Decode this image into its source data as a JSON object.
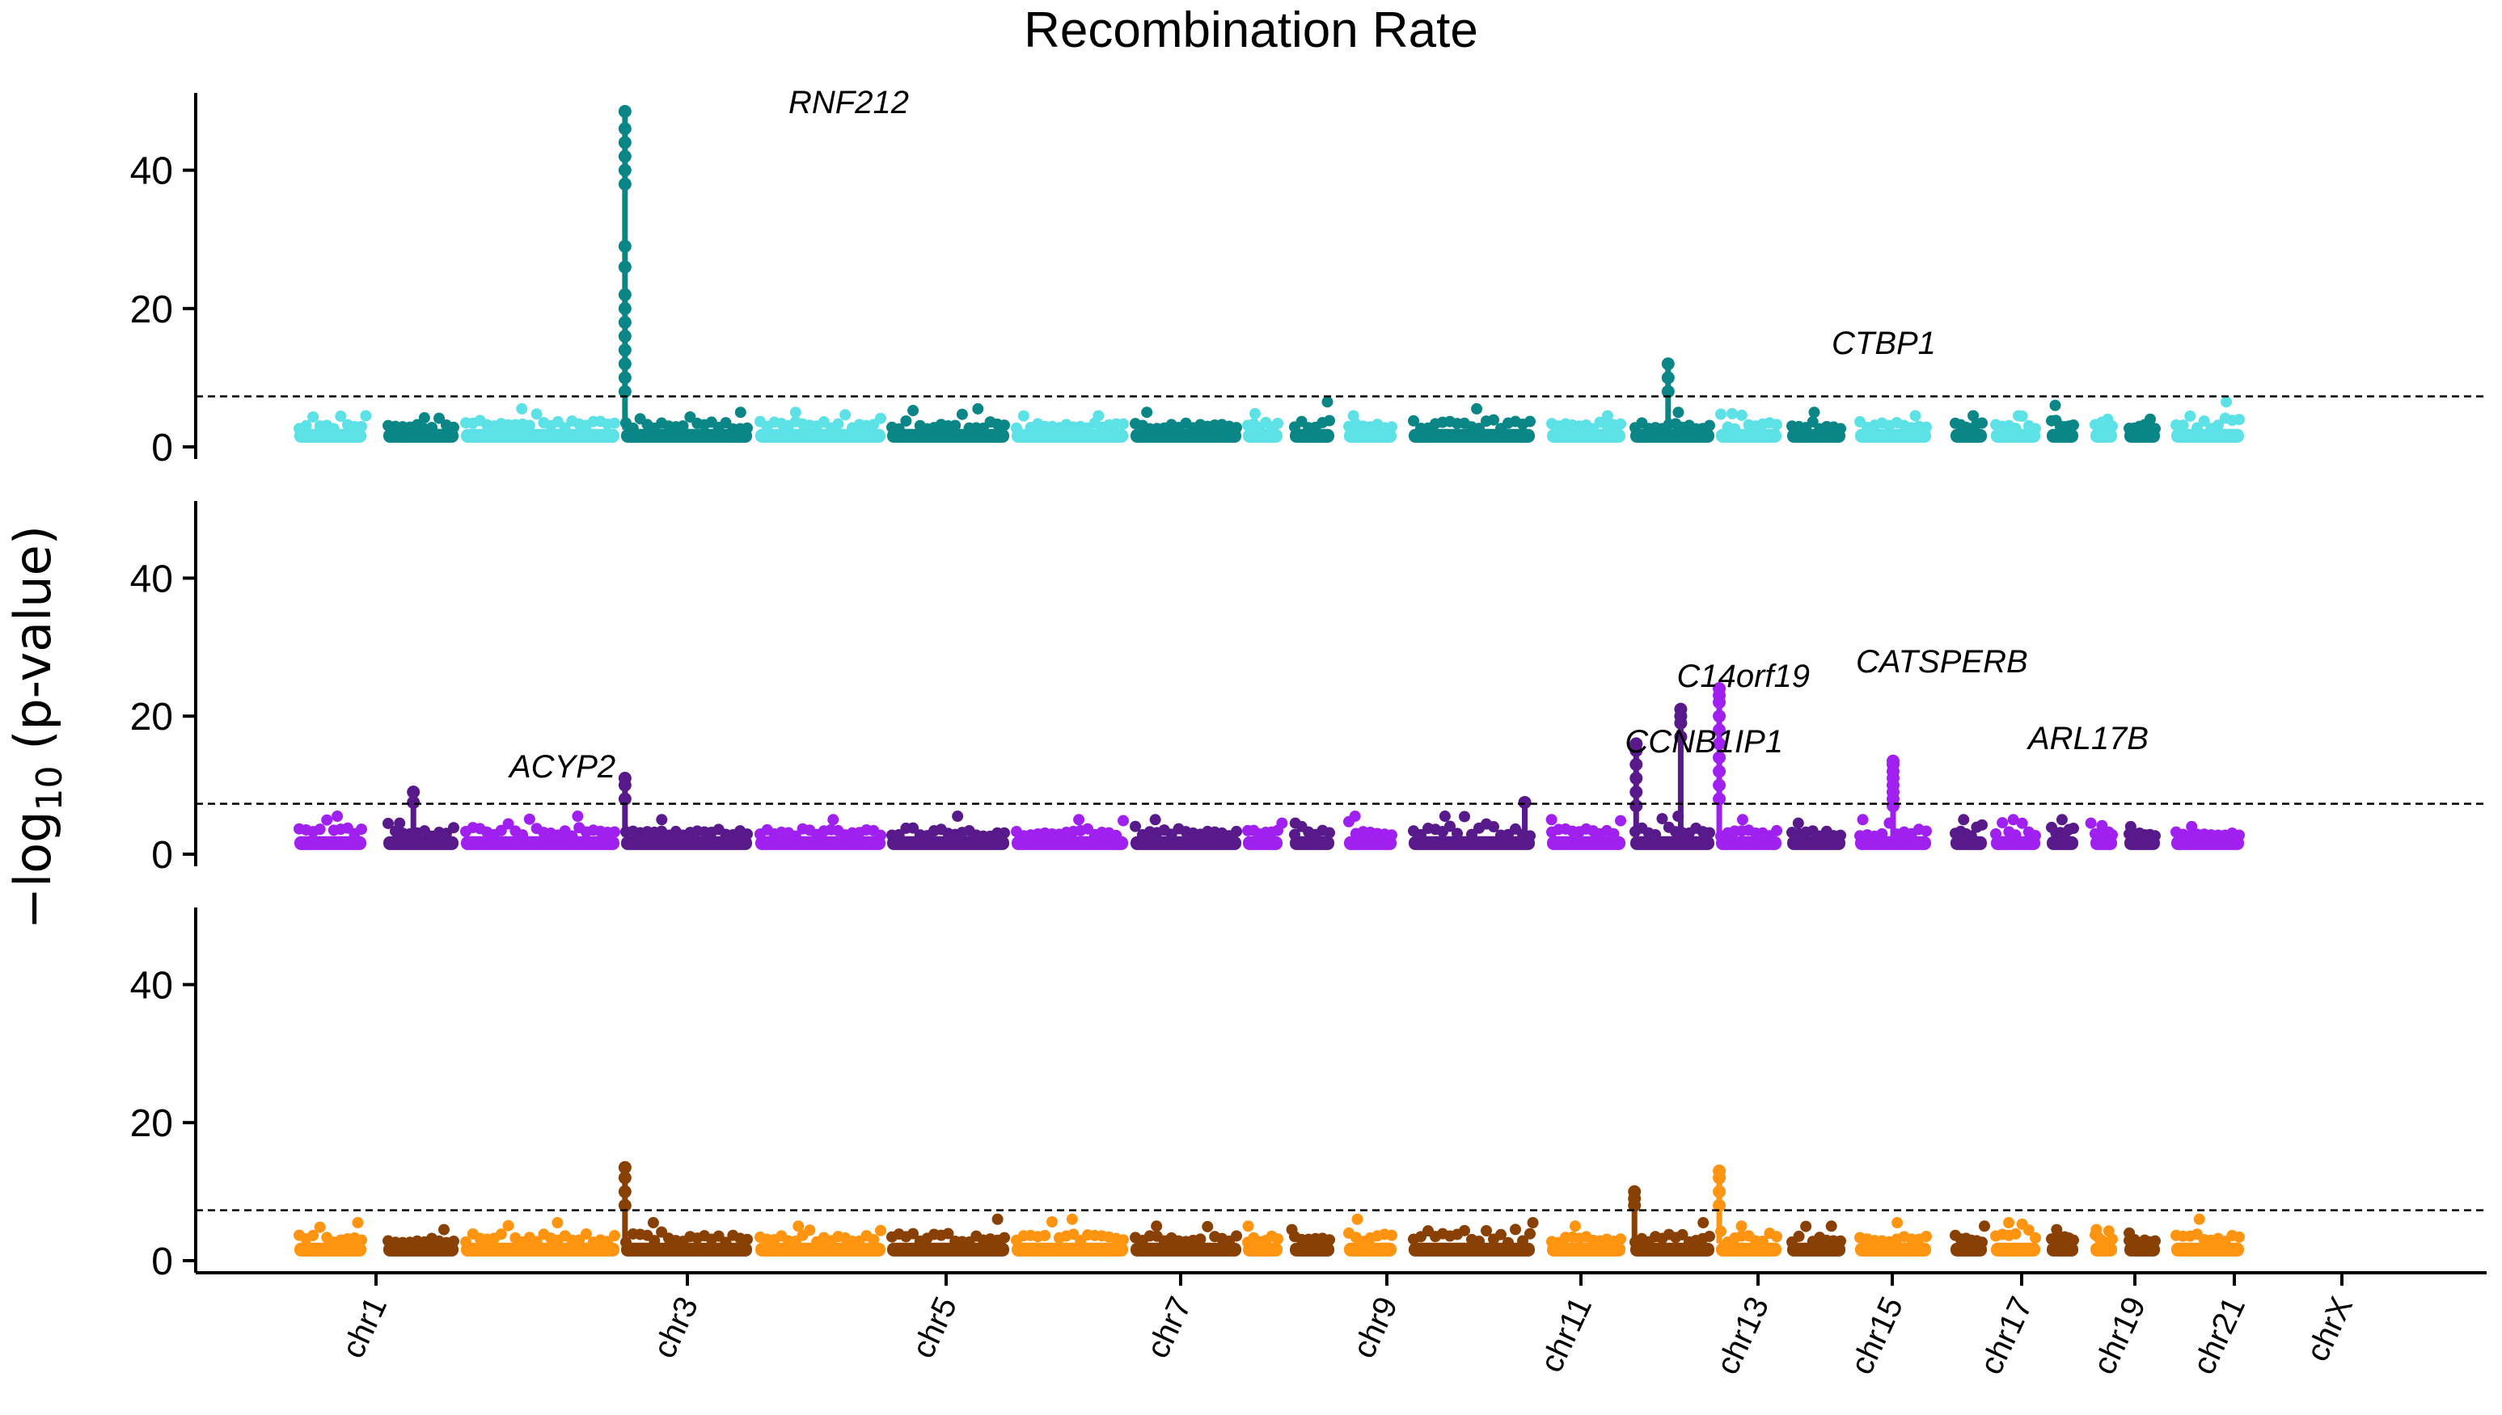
{
  "chart_data": {
    "type": "scatter",
    "subtype": "manhattan",
    "title": "Recombination Rate",
    "ylabel": "−log10 (p-value)",
    "ylabel_parts": {
      "prefix": "−log",
      "subscript": "10",
      "suffix": " (p-value)"
    },
    "ylim": [
      0,
      50
    ],
    "yticks": [
      0,
      20,
      40
    ],
    "x_tick_labels": [
      "chr1",
      "chr3",
      "chr5",
      "chr7",
      "chr9",
      "chr11",
      "chr13",
      "chr15",
      "chr17",
      "chr19",
      "chr21",
      "chrX"
    ],
    "genomewide_threshold": 7.3,
    "chromosomes": [
      "chr1",
      "chr2",
      "chr3",
      "chr4",
      "chr5",
      "chr6",
      "chr7",
      "chr8",
      "chr9",
      "chr10",
      "chr11",
      "chr12",
      "chr13",
      "chr14",
      "chr15",
      "chr16",
      "chr17",
      "chr18",
      "chr19",
      "chr20",
      "chr21",
      "chr22",
      "chrX"
    ],
    "panels": [
      {
        "name": "panel-1",
        "colors": {
          "light": "#5ce1e6",
          "dark": "#0a8686"
        },
        "baseline_max": [
          4.5,
          4.2,
          5.5,
          5.0,
          5.0,
          5.5,
          4.5,
          5.0,
          4.8,
          6.5,
          4.5,
          5.5,
          4.5,
          5.0,
          4.8,
          5.0,
          4.5,
          4.5,
          4.5,
          6.0,
          4.0,
          4.0,
          6.5
        ],
        "peaks": [
          {
            "chrom": "chr4",
            "pos": 0.03,
            "max": 48.5,
            "values": [
              48.5,
              46,
              44,
              42,
              40,
              38,
              29,
              26,
              22,
              20,
              18,
              16,
              14,
              12,
              10,
              8
            ]
          },
          {
            "chrom": "chr14",
            "pos": 0.45,
            "max": 12,
            "values": [
              12,
              10,
              8
            ]
          }
        ],
        "annotations": [
          {
            "label": "RNF212",
            "chrom": "chr4",
            "value": 48.5
          },
          {
            "label": "CTBP1",
            "chrom": "chr14",
            "value": 12
          }
        ]
      },
      {
        "name": "panel-2",
        "colors": {
          "light": "#a020f0",
          "dark": "#581a8a"
        },
        "baseline_max": [
          5.5,
          4.5,
          5.5,
          5.0,
          5.0,
          5.5,
          5.0,
          5.0,
          4.5,
          4.5,
          5.5,
          5.5,
          5.0,
          5.5,
          5.0,
          4.5,
          5.0,
          5.0,
          5.0,
          5.0,
          4.5,
          4.0,
          4.0
        ],
        "peaks": [
          {
            "chrom": "chr2",
            "pos": 0.4,
            "max": 9,
            "values": [
              9,
              7.5
            ]
          },
          {
            "chrom": "chr4",
            "pos": 0.03,
            "max": 11,
            "values": [
              11,
              10,
              8
            ]
          },
          {
            "chrom": "chr12",
            "pos": 0.92,
            "max": 7.5,
            "values": [
              7.5
            ]
          },
          {
            "chrom": "chr14",
            "pos": 0.07,
            "max": 16,
            "values": [
              16,
              15,
              13,
              11,
              9,
              7
            ]
          },
          {
            "chrom": "chr14",
            "pos": 0.6,
            "max": 21,
            "values": [
              21,
              20,
              19,
              17
            ]
          },
          {
            "chrom": "chr15",
            "pos": 0.05,
            "max": 24,
            "values": [
              24,
              23,
              22,
              20,
              18,
              16,
              14,
              12,
              10,
              8
            ]
          },
          {
            "chrom": "chr17",
            "pos": 0.5,
            "max": 13.5,
            "values": [
              13.5,
              13,
              12,
              11,
              10,
              9,
              8,
              7
            ]
          }
        ],
        "annotations": [
          {
            "label": "ACYP2",
            "chrom": "chr2",
            "value": 9
          },
          {
            "label": "C14orf19",
            "chrom": "chr14",
            "value": 21
          },
          {
            "label": "CATSPERB",
            "chrom": "chr15",
            "value": 24
          },
          {
            "label": "CCNB1IP1",
            "chrom": "chr14",
            "value": 16
          },
          {
            "label": "ARL17B",
            "chrom": "chr17",
            "value": 13.5
          }
        ]
      },
      {
        "name": "panel-3",
        "colors": {
          "light": "#ff9410",
          "dark": "#884005"
        },
        "baseline_max": [
          5.5,
          4.5,
          5.5,
          5.5,
          5.0,
          6.0,
          6.0,
          5.0,
          5.0,
          4.5,
          6.0,
          5.5,
          5.0,
          5.5,
          5.0,
          5.0,
          5.5,
          5.0,
          5.5,
          4.5,
          4.5,
          4.0,
          6.0
        ],
        "peaks": [
          {
            "chrom": "chr4",
            "pos": 0.03,
            "max": 13.5,
            "values": [
              13.5,
              12,
              10,
              8
            ]
          },
          {
            "chrom": "chr14",
            "pos": 0.05,
            "max": 10,
            "values": [
              10,
              9,
              8
            ]
          },
          {
            "chrom": "chr15",
            "pos": 0.05,
            "max": 13,
            "values": [
              13,
              12,
              10,
              8
            ]
          }
        ],
        "annotations": []
      }
    ]
  }
}
